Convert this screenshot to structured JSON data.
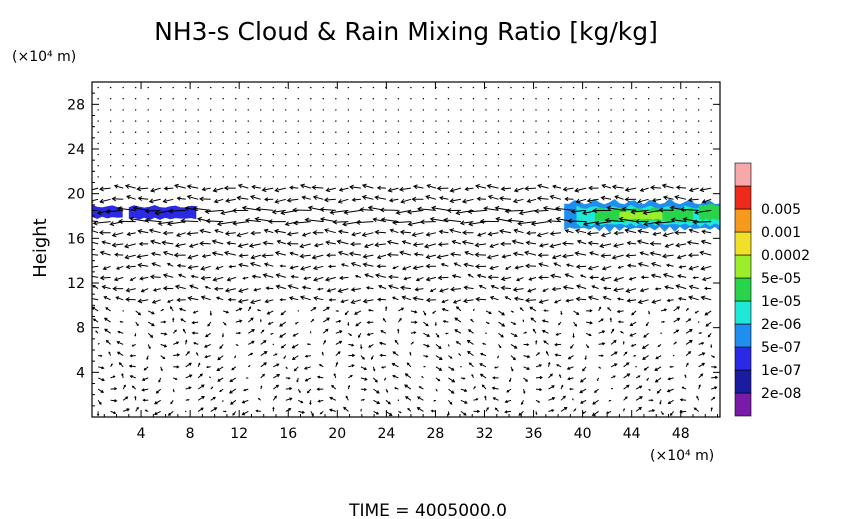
{
  "chart_data": {
    "type": "heatmap",
    "title": "NH3-s Cloud & Rain Mixing Ratio [kg/kg]",
    "ylabel": "Height",
    "x_unit": "(×10⁴ m)",
    "y_unit": "(×10⁴ m)",
    "footer": "TIME =  4005000.0",
    "xlim": [
      0,
      51.2
    ],
    "ylim": [
      0,
      30
    ],
    "x_ticks": [
      "4",
      "8",
      "12",
      "16",
      "20",
      "24",
      "28",
      "32",
      "36",
      "40",
      "44",
      "48"
    ],
    "y_ticks": [
      "4",
      "8",
      "12",
      "16",
      "20",
      "24",
      "28"
    ],
    "overlay": "wind vectors",
    "colorbar": {
      "levels": [
        {
          "label": "",
          "color": "#7a1aa8"
        },
        {
          "label": "2e-08",
          "color": "#1b1ba0"
        },
        {
          "label": "1e-07",
          "color": "#2a2ae6"
        },
        {
          "label": "5e-07",
          "color": "#1f8fef"
        },
        {
          "label": "2e-06",
          "color": "#20e8d8"
        },
        {
          "label": "1e-05",
          "color": "#27d44a"
        },
        {
          "label": "5e-05",
          "color": "#9aee2c"
        },
        {
          "label": "0.0002",
          "color": "#f0e028"
        },
        {
          "label": "0.001",
          "color": "#f59a1a"
        },
        {
          "label": "0.005",
          "color": "#ee2a1a"
        },
        {
          "label": "",
          "color": "#f7a8a8"
        }
      ]
    },
    "cloud_regions": [
      {
        "x0": 0.0,
        "x1": 2.5,
        "y0": 17.7,
        "y1": 19.0,
        "level": 2
      },
      {
        "x0": 3.0,
        "x1": 8.5,
        "y0": 17.6,
        "y1": 19.0,
        "level": 2
      },
      {
        "x0": 38.5,
        "x1": 51.2,
        "y0": 16.5,
        "y1": 19.6,
        "level": 3
      },
      {
        "x0": 39.5,
        "x1": 51.2,
        "y0": 17.0,
        "y1": 19.0,
        "level": 4
      },
      {
        "x0": 41.0,
        "x1": 49.0,
        "y0": 17.4,
        "y1": 18.8,
        "level": 5
      },
      {
        "x0": 43.0,
        "x1": 46.5,
        "y0": 17.6,
        "y1": 18.5,
        "level": 6
      },
      {
        "x0": 49.5,
        "x1": 51.2,
        "y0": 17.5,
        "y1": 19.2,
        "level": 5
      }
    ]
  }
}
